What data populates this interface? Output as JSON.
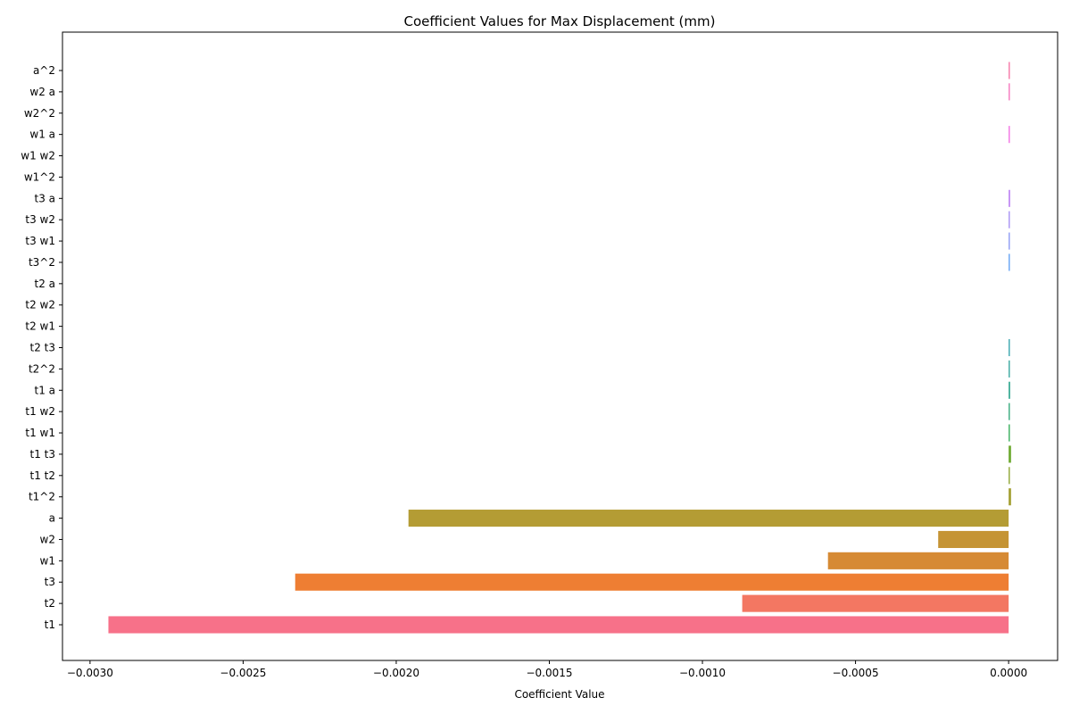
{
  "chart_data": {
    "type": "bar",
    "orientation": "horizontal",
    "title": "Coefficient Values for Max Displacement (mm)",
    "xlabel": "Coefficient Value",
    "ylabel": "",
    "xlim": [
      -0.00309,
      0.00016
    ],
    "xticks": [
      -0.003,
      -0.0025,
      -0.002,
      -0.0015,
      -0.001,
      -0.0005,
      0.0
    ],
    "xtick_labels": [
      "−0.0030",
      "−0.0025",
      "−0.0020",
      "−0.0015",
      "−0.0010",
      "−0.0005",
      "0.0000"
    ],
    "grid": false,
    "legend": "none",
    "categories": [
      "t1",
      "t2",
      "t3",
      "w1",
      "w2",
      "a",
      "t1^2",
      "t1 t2",
      "t1 t3",
      "t1 w1",
      "t1 w2",
      "t1 a",
      "t2^2",
      "t2 t3",
      "t2 w1",
      "t2 w2",
      "t2 a",
      "t3^2",
      "t3 w1",
      "t3 w2",
      "t3 a",
      "w1^2",
      "w1 w2",
      "w1 a",
      "w2^2",
      "w2 a",
      "a^2"
    ],
    "values": [
      -0.00294,
      -0.00087,
      -0.00233,
      -0.00059,
      -0.00023,
      -0.00196,
      8e-06,
      2e-06,
      8e-06,
      3e-06,
      3e-06,
      5e-06,
      2e-06,
      2e-06,
      0.0,
      0.0,
      0.0,
      2e-06,
      2e-06,
      2e-06,
      5e-06,
      0.0,
      0.0,
      2e-06,
      0.0,
      2e-06,
      2e-06
    ],
    "colors": [
      "#f77189",
      "#f37762",
      "#ee7e33",
      "#d68a34",
      "#c59434",
      "#b49c34",
      "#a4a034",
      "#8fa633",
      "#6fab33",
      "#36ae5a",
      "#36aa7c",
      "#35a990",
      "#37a79f",
      "#38a5ad",
      "#38a4ba",
      "#3aa2c9",
      "#41a0db",
      "#64a2f4",
      "#8d9af4",
      "#a791f4",
      "#bf86f4",
      "#d57cf4",
      "#ec6df4",
      "#f371e4",
      "#f473d0",
      "#f575bd",
      "#f676a6"
    ]
  }
}
